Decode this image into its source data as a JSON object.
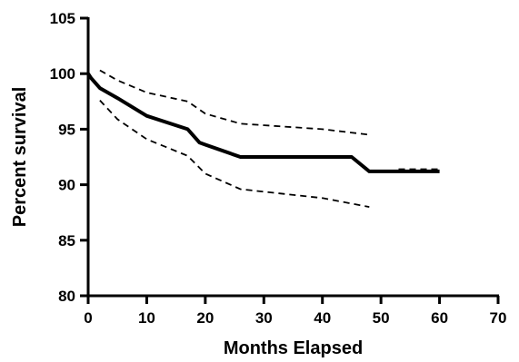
{
  "chart_data": {
    "type": "line",
    "title": "",
    "xlabel": "Months Elapsed",
    "ylabel": "Percent survival",
    "xlim": [
      0,
      70
    ],
    "ylim": [
      80,
      105
    ],
    "xticks": [
      0,
      10,
      20,
      30,
      40,
      50,
      60,
      70
    ],
    "yticks": [
      80,
      85,
      90,
      95,
      100,
      105
    ],
    "grid": false,
    "legend": "none",
    "series": [
      {
        "style": "solid",
        "color": "#000000",
        "x": [
          0,
          0.5,
          2,
          5,
          10,
          17,
          19,
          20,
          26,
          45,
          48,
          60
        ],
        "y": [
          100,
          99.6,
          98.7,
          97.8,
          96.2,
          95.0,
          93.8,
          93.6,
          92.5,
          92.5,
          91.2,
          91.2
        ]
      },
      {
        "style": "dashed",
        "color": "#000000",
        "x": [
          2,
          5,
          10,
          17,
          20,
          26,
          40,
          48
        ],
        "y": [
          100.3,
          99.4,
          98.3,
          97.5,
          96.4,
          95.5,
          95.0,
          94.5
        ]
      },
      {
        "style": "dashed",
        "color": "#000000",
        "x": [
          2,
          5,
          10,
          17,
          20,
          26,
          40,
          48
        ],
        "y": [
          97.6,
          95.9,
          94.1,
          92.6,
          91.0,
          89.6,
          88.8,
          88.0
        ]
      },
      {
        "style": "dashed",
        "color": "#000000",
        "x": [
          53,
          60
        ],
        "y": [
          91.4,
          91.4
        ]
      }
    ]
  }
}
